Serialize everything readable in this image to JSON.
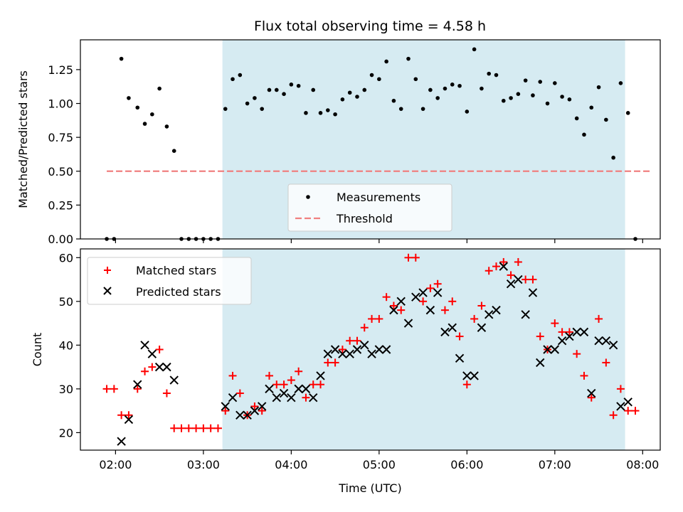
{
  "chart_data": [
    {
      "type": "scatter",
      "title": "Flux total observing time = 4.58 h",
      "ylabel": "Matched/Predicted stars",
      "xlabel": "",
      "xlim": [
        "01:36",
        "08:12"
      ],
      "ylim": [
        0,
        1.47
      ],
      "yticks": [
        "0.00",
        "0.25",
        "0.50",
        "0.75",
        "1.00",
        "1.25"
      ],
      "shaded_region": [
        "03:13",
        "07:48"
      ],
      "threshold": {
        "name": "Threshold",
        "value": 0.5,
        "x": [
          "01:54",
          "08:06"
        ],
        "color": "#f08080"
      },
      "legend": {
        "placement": "lower-center",
        "entries": [
          "Measurements",
          "Threshold"
        ]
      },
      "series": [
        {
          "name": "Measurements",
          "color": "#000000",
          "points": [
            [
              "01:54",
              0
            ],
            [
              "01:59",
              0
            ],
            [
              "02:04",
              1.33
            ],
            [
              "02:09",
              1.04
            ],
            [
              "02:15",
              0.97
            ],
            [
              "02:20",
              0.85
            ],
            [
              "02:25",
              0.92
            ],
            [
              "02:30",
              1.11
            ],
            [
              "02:35",
              0.83
            ],
            [
              "02:40",
              0.65
            ],
            [
              "02:45",
              0
            ],
            [
              "02:50",
              0
            ],
            [
              "02:55",
              0
            ],
            [
              "03:00",
              0
            ],
            [
              "03:05",
              0
            ],
            [
              "03:10",
              0
            ],
            [
              "03:15",
              0.96
            ],
            [
              "03:20",
              1.18
            ],
            [
              "03:25",
              1.21
            ],
            [
              "03:30",
              1.0
            ],
            [
              "03:35",
              1.04
            ],
            [
              "03:40",
              0.96
            ],
            [
              "03:45",
              1.1
            ],
            [
              "03:50",
              1.1
            ],
            [
              "03:55",
              1.07
            ],
            [
              "04:00",
              1.14
            ],
            [
              "04:05",
              1.13
            ],
            [
              "04:10",
              0.93
            ],
            [
              "04:15",
              1.1
            ],
            [
              "04:20",
              0.93
            ],
            [
              "04:25",
              0.95
            ],
            [
              "04:30",
              0.92
            ],
            [
              "04:35",
              1.03
            ],
            [
              "04:40",
              1.08
            ],
            [
              "04:45",
              1.05
            ],
            [
              "04:50",
              1.1
            ],
            [
              "04:55",
              1.21
            ],
            [
              "05:00",
              1.18
            ],
            [
              "05:05",
              1.31
            ],
            [
              "05:10",
              1.02
            ],
            [
              "05:15",
              0.96
            ],
            [
              "05:20",
              1.33
            ],
            [
              "05:25",
              1.18
            ],
            [
              "05:30",
              0.96
            ],
            [
              "05:35",
              1.1
            ],
            [
              "05:40",
              1.04
            ],
            [
              "05:45",
              1.11
            ],
            [
              "05:50",
              1.14
            ],
            [
              "05:55",
              1.13
            ],
            [
              "06:00",
              0.94
            ],
            [
              "06:05",
              1.4
            ],
            [
              "06:10",
              1.11
            ],
            [
              "06:15",
              1.22
            ],
            [
              "06:20",
              1.21
            ],
            [
              "06:25",
              1.02
            ],
            [
              "06:30",
              1.04
            ],
            [
              "06:35",
              1.07
            ],
            [
              "06:40",
              1.17
            ],
            [
              "06:45",
              1.06
            ],
            [
              "06:50",
              1.16
            ],
            [
              "06:55",
              1.0
            ],
            [
              "07:00",
              1.15
            ],
            [
              "07:05",
              1.05
            ],
            [
              "07:10",
              1.03
            ],
            [
              "07:15",
              0.89
            ],
            [
              "07:20",
              0.77
            ],
            [
              "07:25",
              0.97
            ],
            [
              "07:30",
              1.12
            ],
            [
              "07:35",
              0.88
            ],
            [
              "07:40",
              0.6
            ],
            [
              "07:45",
              1.15
            ],
            [
              "07:50",
              0.93
            ],
            [
              "07:55",
              0
            ]
          ]
        }
      ]
    },
    {
      "type": "scatter",
      "title": "",
      "ylabel": "Count",
      "xlabel": "Time (UTC)",
      "xlim": [
        "01:36",
        "08:12"
      ],
      "ylim": [
        16,
        62
      ],
      "yticks": [
        "20",
        "30",
        "40",
        "50",
        "60"
      ],
      "xticks": [
        "02:00",
        "03:00",
        "04:00",
        "05:00",
        "06:00",
        "07:00",
        "08:00"
      ],
      "shaded_region": [
        "03:13",
        "07:48"
      ],
      "legend": {
        "placement": "top-left",
        "entries": [
          "Matched stars",
          "Predicted stars"
        ]
      },
      "series": [
        {
          "name": "Matched stars",
          "marker": "plus",
          "color": "#ff0000",
          "points": [
            [
              "01:54",
              30
            ],
            [
              "01:59",
              30
            ],
            [
              "02:04",
              24
            ],
            [
              "02:09",
              24
            ],
            [
              "02:15",
              30
            ],
            [
              "02:20",
              34
            ],
            [
              "02:25",
              35
            ],
            [
              "02:30",
              39
            ],
            [
              "02:35",
              29
            ],
            [
              "02:40",
              21
            ],
            [
              "02:45",
              21
            ],
            [
              "02:50",
              21
            ],
            [
              "02:55",
              21
            ],
            [
              "03:00",
              21
            ],
            [
              "03:05",
              21
            ],
            [
              "03:10",
              21
            ],
            [
              "03:15",
              25
            ],
            [
              "03:20",
              33
            ],
            [
              "03:25",
              29
            ],
            [
              "03:30",
              24
            ],
            [
              "03:35",
              26
            ],
            [
              "03:40",
              25
            ],
            [
              "03:45",
              33
            ],
            [
              "03:50",
              31
            ],
            [
              "03:55",
              31
            ],
            [
              "04:00",
              32
            ],
            [
              "04:05",
              34
            ],
            [
              "04:10",
              28
            ],
            [
              "04:15",
              31
            ],
            [
              "04:20",
              31
            ],
            [
              "04:25",
              36
            ],
            [
              "04:30",
              36
            ],
            [
              "04:35",
              39
            ],
            [
              "04:40",
              41
            ],
            [
              "04:45",
              41
            ],
            [
              "04:50",
              44
            ],
            [
              "04:55",
              46
            ],
            [
              "05:00",
              46
            ],
            [
              "05:05",
              51
            ],
            [
              "05:10",
              49
            ],
            [
              "05:15",
              48
            ],
            [
              "05:20",
              60
            ],
            [
              "05:25",
              60
            ],
            [
              "05:30",
              50
            ],
            [
              "05:35",
              53
            ],
            [
              "05:40",
              54
            ],
            [
              "05:45",
              48
            ],
            [
              "05:50",
              50
            ],
            [
              "05:55",
              42
            ],
            [
              "06:00",
              31
            ],
            [
              "06:05",
              46
            ],
            [
              "06:10",
              49
            ],
            [
              "06:15",
              57
            ],
            [
              "06:20",
              58
            ],
            [
              "06:25",
              59
            ],
            [
              "06:30",
              56
            ],
            [
              "06:35",
              59
            ],
            [
              "06:40",
              55
            ],
            [
              "06:45",
              55
            ],
            [
              "06:50",
              42
            ],
            [
              "06:55",
              39
            ],
            [
              "07:00",
              45
            ],
            [
              "07:05",
              43
            ],
            [
              "07:10",
              43
            ],
            [
              "07:15",
              38
            ],
            [
              "07:20",
              33
            ],
            [
              "07:25",
              28
            ],
            [
              "07:30",
              46
            ],
            [
              "07:35",
              36
            ],
            [
              "07:40",
              24
            ],
            [
              "07:45",
              30
            ],
            [
              "07:50",
              25
            ],
            [
              "07:55",
              25
            ]
          ]
        },
        {
          "name": "Predicted stars",
          "marker": "x",
          "color": "#000000",
          "points": [
            [
              "02:04",
              18
            ],
            [
              "02:09",
              23
            ],
            [
              "02:15",
              31
            ],
            [
              "02:20",
              40
            ],
            [
              "02:25",
              38
            ],
            [
              "02:30",
              35
            ],
            [
              "02:35",
              35
            ],
            [
              "02:40",
              32
            ],
            [
              "03:15",
              26
            ],
            [
              "03:20",
              28
            ],
            [
              "03:25",
              24
            ],
            [
              "03:30",
              24
            ],
            [
              "03:35",
              25
            ],
            [
              "03:40",
              26
            ],
            [
              "03:45",
              30
            ],
            [
              "03:50",
              28
            ],
            [
              "03:55",
              29
            ],
            [
              "04:00",
              28
            ],
            [
              "04:05",
              30
            ],
            [
              "04:10",
              30
            ],
            [
              "04:15",
              28
            ],
            [
              "04:20",
              33
            ],
            [
              "04:25",
              38
            ],
            [
              "04:30",
              39
            ],
            [
              "04:35",
              38
            ],
            [
              "04:40",
              38
            ],
            [
              "04:45",
              39
            ],
            [
              "04:50",
              40
            ],
            [
              "04:55",
              38
            ],
            [
              "05:00",
              39
            ],
            [
              "05:05",
              39
            ],
            [
              "05:10",
              48
            ],
            [
              "05:15",
              50
            ],
            [
              "05:20",
              45
            ],
            [
              "05:25",
              51
            ],
            [
              "05:30",
              52
            ],
            [
              "05:35",
              48
            ],
            [
              "05:40",
              52
            ],
            [
              "05:45",
              43
            ],
            [
              "05:50",
              44
            ],
            [
              "05:55",
              37
            ],
            [
              "06:00",
              33
            ],
            [
              "06:05",
              33
            ],
            [
              "06:10",
              44
            ],
            [
              "06:15",
              47
            ],
            [
              "06:20",
              48
            ],
            [
              "06:25",
              58
            ],
            [
              "06:30",
              54
            ],
            [
              "06:35",
              55
            ],
            [
              "06:40",
              47
            ],
            [
              "06:45",
              52
            ],
            [
              "06:50",
              36
            ],
            [
              "06:55",
              39
            ],
            [
              "07:00",
              39
            ],
            [
              "07:05",
              41
            ],
            [
              "07:10",
              42
            ],
            [
              "07:15",
              43
            ],
            [
              "07:20",
              43
            ],
            [
              "07:25",
              29
            ],
            [
              "07:30",
              41
            ],
            [
              "07:35",
              41
            ],
            [
              "07:40",
              40
            ],
            [
              "07:45",
              26
            ],
            [
              "07:50",
              27
            ]
          ]
        }
      ]
    }
  ]
}
